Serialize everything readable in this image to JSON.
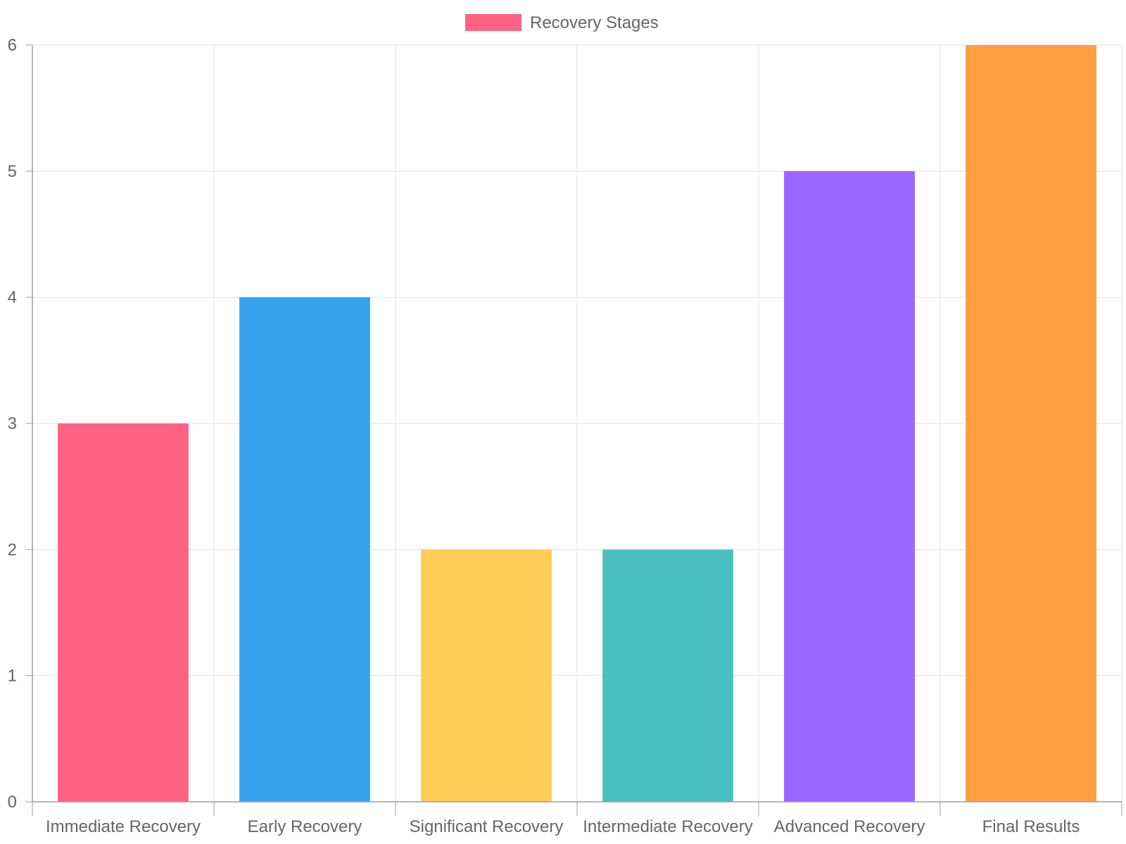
{
  "chart_data": {
    "type": "bar",
    "title": "",
    "xlabel": "",
    "ylabel": "",
    "categories": [
      "Immediate Recovery",
      "Early Recovery",
      "Significant Recovery",
      "Intermediate Recovery",
      "Advanced Recovery",
      "Final Results"
    ],
    "series": [
      {
        "name": "Recovery Stages",
        "values": [
          3,
          4,
          2,
          2,
          5,
          6
        ],
        "colors": [
          "#ff6384",
          "#36a2eb",
          "#ffcd56",
          "#4bc0c0",
          "#9966ff",
          "#ff9f40"
        ]
      }
    ],
    "ylim": [
      0,
      6
    ],
    "y_ticks": [
      "0",
      "1",
      "2",
      "3",
      "4",
      "5",
      "6"
    ],
    "grid": true,
    "legend": {
      "position": "top-center",
      "label": "Recovery Stages",
      "swatch_color": "#ff6384"
    }
  }
}
